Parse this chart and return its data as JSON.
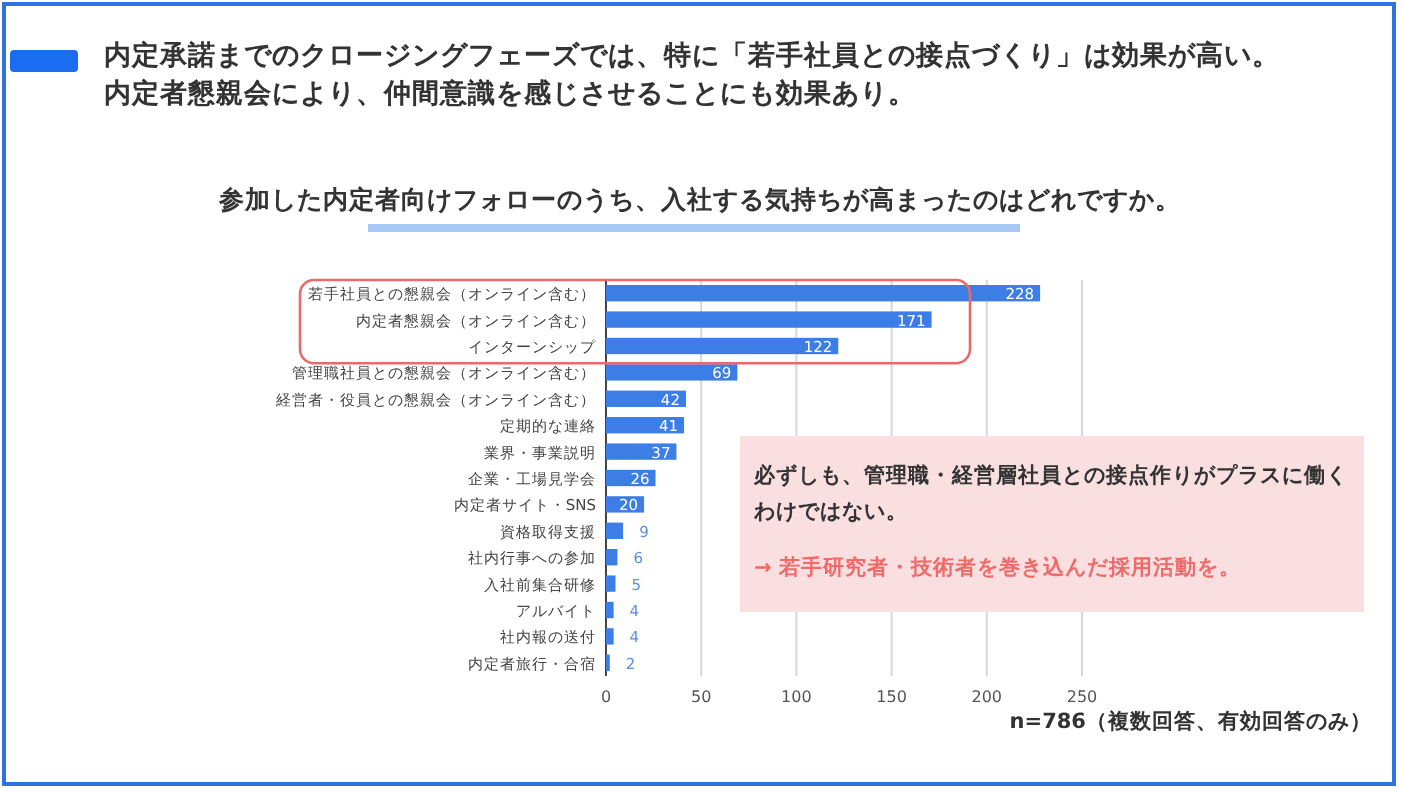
{
  "chart_data": {
    "type": "bar",
    "orientation": "horizontal",
    "title": "内定承諾までのクロージングフェーズでは、特に「若手社員との接点づくり」は効果が高い。内定者懇親会により、仲間意識を感じさせることにも効果あり。",
    "subtitle": "参加した内定者向けフォローのうち、入社する気持ちが高まったのはどれですか。",
    "categories": [
      "若手社員との懇親会（オンライン含む）",
      "内定者懇親会（オンライン含む）",
      "インターンシップ",
      "管理職社員との懇親会（オンライン含む）",
      "経営者・役員との懇親会（オンライン含む）",
      "定期的な連絡",
      "業界・事業説明",
      "企業・工場見学会",
      "内定者サイト・SNS",
      "資格取得支援",
      "社内行事への参加",
      "入社前集合研修",
      "アルバイト",
      "社内報の送付",
      "内定者旅行・合宿"
    ],
    "values": [
      228,
      171,
      122,
      69,
      42,
      41,
      37,
      26,
      20,
      9,
      6,
      5,
      4,
      4,
      2
    ],
    "color": "#3d7ee6",
    "xlim": [
      0,
      250
    ],
    "xticks": [
      0,
      50,
      100,
      150,
      200,
      250
    ],
    "grid": "x",
    "data_labels": true,
    "annotations": [
      "必ずしも、管理職・経営層社員との接点作りがプラスに働くわけではない。",
      "→  若手研究者・技術者を巻き込んだ採用活動を。",
      "n=786（複数回答、有効回答のみ）"
    ]
  }
}
